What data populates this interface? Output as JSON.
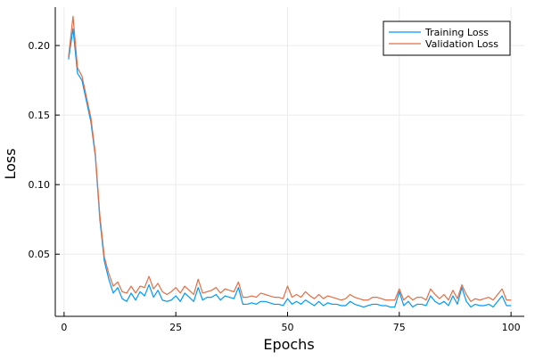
{
  "chart_data": {
    "type": "line",
    "title": "",
    "xlabel": "Epochs",
    "ylabel": "Loss",
    "xlim": [
      -1.97,
      102.97
    ],
    "ylim": [
      0.0053,
      0.2276
    ],
    "x_ticks": [
      0,
      25,
      50,
      75,
      100
    ],
    "y_ticks": [
      0.05,
      0.1,
      0.15,
      0.2
    ],
    "y_tick_labels": [
      "0.05",
      "0.10",
      "0.15",
      "0.20"
    ],
    "grid": true,
    "legend_position": "top-right",
    "x": [
      1,
      2,
      3,
      4,
      5,
      6,
      7,
      8,
      9,
      10,
      11,
      12,
      13,
      14,
      15,
      16,
      17,
      18,
      19,
      20,
      21,
      22,
      23,
      24,
      25,
      26,
      27,
      28,
      29,
      30,
      31,
      32,
      33,
      34,
      35,
      36,
      37,
      38,
      39,
      40,
      41,
      42,
      43,
      44,
      45,
      46,
      47,
      48,
      49,
      50,
      51,
      52,
      53,
      54,
      55,
      56,
      57,
      58,
      59,
      60,
      61,
      62,
      63,
      64,
      65,
      66,
      67,
      68,
      69,
      70,
      71,
      72,
      73,
      74,
      75,
      76,
      77,
      78,
      79,
      80,
      81,
      82,
      83,
      84,
      85,
      86,
      87,
      88,
      89,
      90,
      91,
      92,
      93,
      94,
      95,
      96,
      97,
      98,
      99,
      100
    ],
    "series": [
      {
        "name": "Training Loss",
        "color": "#009AF9",
        "values": [
          0.19,
          0.212,
          0.18,
          0.175,
          0.16,
          0.145,
          0.12,
          0.075,
          0.045,
          0.032,
          0.022,
          0.026,
          0.018,
          0.016,
          0.022,
          0.017,
          0.023,
          0.02,
          0.028,
          0.019,
          0.024,
          0.017,
          0.016,
          0.017,
          0.02,
          0.016,
          0.022,
          0.019,
          0.016,
          0.026,
          0.017,
          0.019,
          0.019,
          0.021,
          0.017,
          0.02,
          0.019,
          0.018,
          0.026,
          0.014,
          0.014,
          0.015,
          0.014,
          0.016,
          0.016,
          0.015,
          0.014,
          0.014,
          0.013,
          0.018,
          0.014,
          0.016,
          0.014,
          0.017,
          0.015,
          0.013,
          0.016,
          0.013,
          0.015,
          0.014,
          0.014,
          0.013,
          0.013,
          0.016,
          0.014,
          0.013,
          0.012,
          0.013,
          0.014,
          0.014,
          0.013,
          0.013,
          0.012,
          0.012,
          0.023,
          0.013,
          0.016,
          0.012,
          0.014,
          0.014,
          0.013,
          0.02,
          0.016,
          0.014,
          0.016,
          0.013,
          0.02,
          0.014,
          0.026,
          0.016,
          0.012,
          0.014,
          0.013,
          0.013,
          0.014,
          0.012,
          0.016,
          0.02,
          0.013,
          0.013
        ]
      },
      {
        "name": "Validation Loss",
        "color": "#E26F46",
        "values": [
          0.192,
          0.221,
          0.184,
          0.178,
          0.163,
          0.148,
          0.122,
          0.078,
          0.048,
          0.036,
          0.027,
          0.03,
          0.023,
          0.022,
          0.027,
          0.022,
          0.027,
          0.026,
          0.034,
          0.025,
          0.029,
          0.023,
          0.021,
          0.023,
          0.026,
          0.022,
          0.027,
          0.024,
          0.021,
          0.032,
          0.022,
          0.023,
          0.024,
          0.026,
          0.022,
          0.025,
          0.024,
          0.023,
          0.03,
          0.019,
          0.019,
          0.02,
          0.019,
          0.022,
          0.021,
          0.02,
          0.019,
          0.019,
          0.018,
          0.027,
          0.019,
          0.021,
          0.019,
          0.023,
          0.02,
          0.018,
          0.021,
          0.018,
          0.02,
          0.019,
          0.018,
          0.017,
          0.018,
          0.021,
          0.019,
          0.018,
          0.017,
          0.017,
          0.019,
          0.019,
          0.018,
          0.017,
          0.017,
          0.017,
          0.025,
          0.017,
          0.02,
          0.017,
          0.019,
          0.019,
          0.017,
          0.025,
          0.021,
          0.018,
          0.021,
          0.017,
          0.024,
          0.018,
          0.028,
          0.021,
          0.016,
          0.018,
          0.017,
          0.018,
          0.019,
          0.017,
          0.021,
          0.025,
          0.017,
          0.017
        ]
      }
    ]
  },
  "colors": {
    "axis": "#000000",
    "grid": "#EBEBEB",
    "legend_border": "#000000"
  }
}
